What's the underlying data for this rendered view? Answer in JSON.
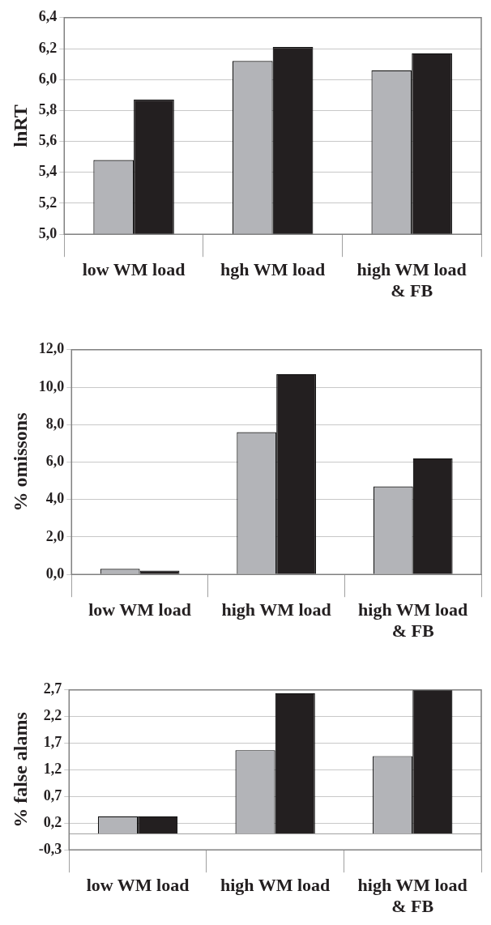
{
  "chart_data": [
    {
      "type": "bar",
      "ylabel": "lnRT",
      "categories": [
        "low WM load",
        "hgh WM load",
        "high WM load & FB"
      ],
      "series": [
        {
          "color": "#b3b4b8",
          "values": [
            5.48,
            6.12,
            6.06
          ]
        },
        {
          "color": "#231f20",
          "values": [
            5.87,
            6.21,
            6.17
          ]
        }
      ],
      "ylim": [
        5.0,
        6.4
      ],
      "yticks": [
        {
          "value": 5.0,
          "label": "5,0"
        },
        {
          "value": 5.2,
          "label": "5,2"
        },
        {
          "value": 5.4,
          "label": "5,4"
        },
        {
          "value": 5.6,
          "label": "5,6"
        },
        {
          "value": 5.8,
          "label": "5,8"
        },
        {
          "value": 6.0,
          "label": "6,0"
        },
        {
          "value": 6.2,
          "label": "6,2"
        },
        {
          "value": 6.4,
          "label": "6,4"
        }
      ],
      "grid": "y"
    },
    {
      "type": "bar",
      "ylabel": "% omissons",
      "categories": [
        "low WM load",
        "high WM load",
        "high WM load & FB"
      ],
      "series": [
        {
          "color": "#b3b4b8",
          "values": [
            0.3,
            7.6,
            4.7
          ]
        },
        {
          "color": "#231f20",
          "values": [
            0.2,
            10.7,
            6.2
          ]
        }
      ],
      "ylim": [
        0,
        12
      ],
      "yticks": [
        {
          "value": 0,
          "label": "0,0"
        },
        {
          "value": 2,
          "label": "2,0"
        },
        {
          "value": 4,
          "label": "4,0"
        },
        {
          "value": 6,
          "label": "6,0"
        },
        {
          "value": 8,
          "label": "8,0"
        },
        {
          "value": 10,
          "label": "10,0"
        },
        {
          "value": 12,
          "label": "12,0"
        }
      ],
      "grid": "y"
    },
    {
      "type": "bar",
      "ylabel": "% false alams",
      "categories": [
        "low WM load",
        "high WM load",
        "high WM load & FB"
      ],
      "series": [
        {
          "color": "#b3b4b8",
          "values": [
            0.33,
            1.57,
            1.46
          ]
        },
        {
          "color": "#231f20",
          "values": [
            0.33,
            2.64,
            2.7
          ]
        }
      ],
      "ylim": [
        -0.3,
        2.7
      ],
      "yticks": [
        {
          "value": -0.3,
          "label": "-0,3"
        },
        {
          "value": 0.2,
          "label": "0,2"
        },
        {
          "value": 0.7,
          "label": "0,7"
        },
        {
          "value": 1.2,
          "label": "1,2"
        },
        {
          "value": 1.7,
          "label": "1,7"
        },
        {
          "value": 2.2,
          "label": "2,2"
        },
        {
          "value": 2.7,
          "label": "2,7"
        }
      ],
      "grid": "y",
      "ref_lines": [
        {
          "axis": "y",
          "value": 0,
          "color": "#a0a0a0"
        }
      ]
    }
  ]
}
